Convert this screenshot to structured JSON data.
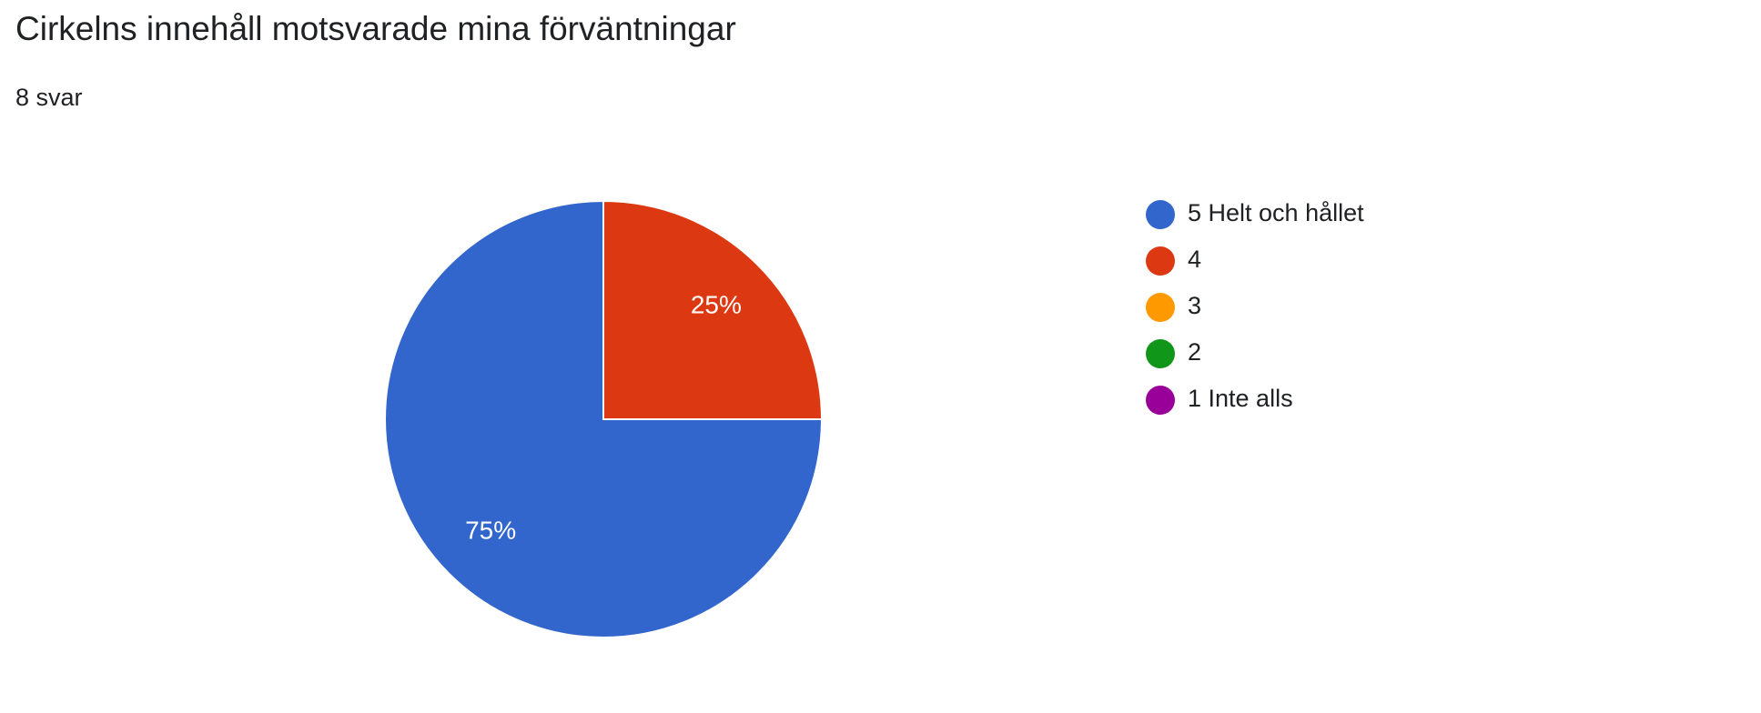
{
  "chart_data": {
    "type": "pie",
    "title": "Cirkelns innehåll motsvarade mina förväntningar",
    "subtitle": "8 svar",
    "categories": [
      "5 Helt och hållet",
      "4",
      "3",
      "2",
      "1 Inte alls"
    ],
    "values": [
      75,
      25,
      0,
      0,
      0
    ],
    "value_labels": [
      "75%",
      "25%",
      null,
      null,
      null
    ],
    "colors": [
      "#3366cc",
      "#dc3912",
      "#ff9900",
      "#109618",
      "#990099"
    ],
    "legend": "right"
  }
}
